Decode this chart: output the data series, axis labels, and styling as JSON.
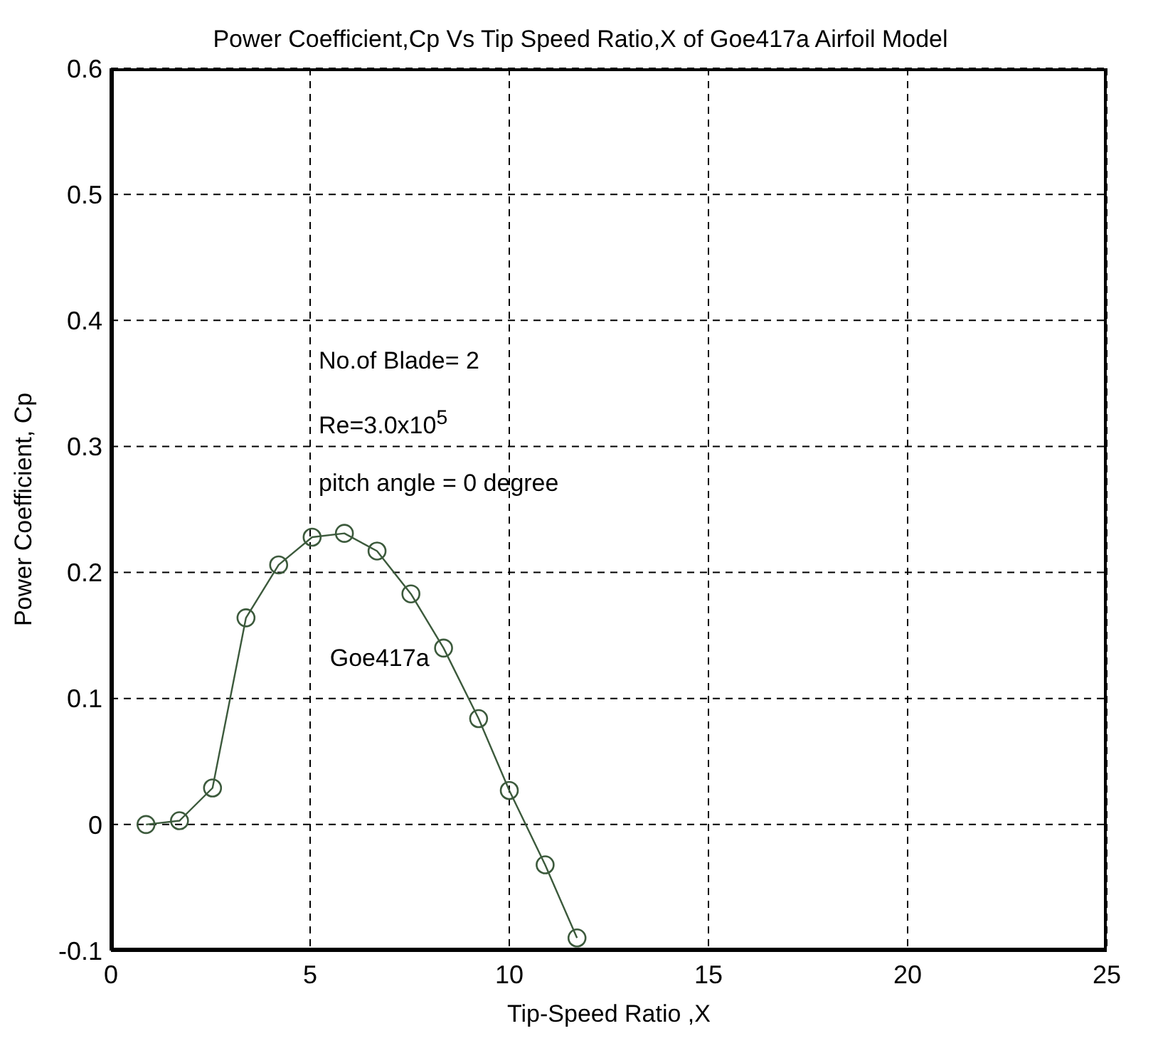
{
  "chart_data": {
    "type": "line",
    "title": "Power Coefficient,Cp Vs Tip Speed Ratio,X of Goe417a Airfoil Model",
    "xlabel": "Tip-Speed Ratio ,X",
    "ylabel": "Power Coefficient, Cp",
    "x": [
      0.88,
      1.72,
      2.55,
      3.39,
      4.21,
      5.05,
      5.86,
      6.68,
      7.53,
      8.35,
      9.23,
      10.0,
      10.9,
      11.7
    ],
    "series": [
      {
        "name": "Goe417a",
        "color": "#3c5a3c",
        "values": [
          0,
          0.003,
          0.029,
          0.164,
          0.206,
          0.228,
          0.231,
          0.217,
          0.183,
          0.14,
          0.084,
          0.027,
          -0.032,
          -0.09
        ]
      }
    ],
    "xlim": [
      0,
      25
    ],
    "xticks": [
      0,
      5,
      10,
      15,
      20,
      25
    ],
    "ylim": [
      -0.1,
      0.6
    ],
    "yticks": [
      -0.1,
      0,
      0.1,
      0.2,
      0.3,
      0.4,
      0.5,
      0.6
    ],
    "grid": true,
    "marker": "circle",
    "line_style": "solid",
    "legend": false,
    "annotations": [
      "No.of Blade= 2",
      "Re=3.0x10$^{5}$",
      "pitch angle = 0 degree"
    ]
  }
}
